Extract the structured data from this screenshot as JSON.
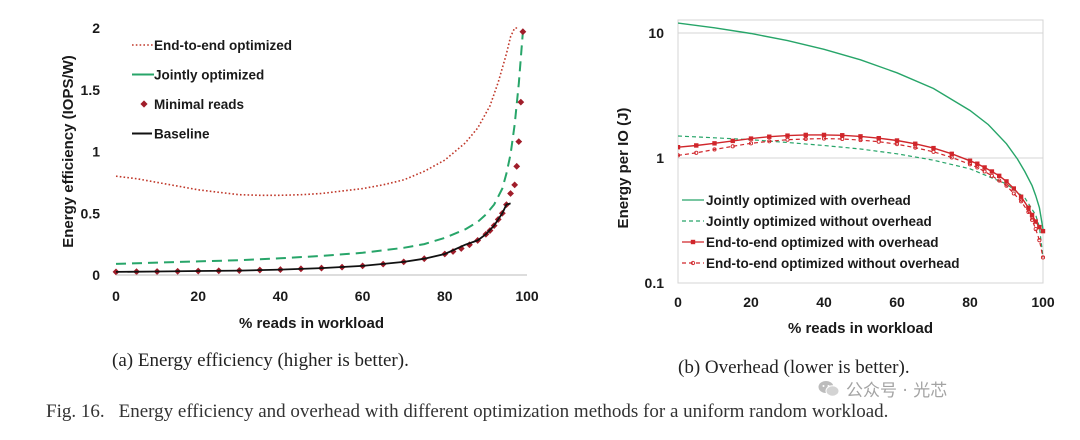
{
  "chart_data": [
    {
      "type": "line",
      "xlabel": "% reads in workload",
      "ylabel": "Energy  efficiency (IOPS/W)",
      "xlim": [
        0,
        100
      ],
      "ylim": [
        0,
        2
      ],
      "x_ticks": [
        "0",
        "20",
        "40",
        "60",
        "80",
        "100"
      ],
      "y_ticks": [
        "0",
        "0.5",
        "1",
        "1.5",
        "2"
      ],
      "grid": false,
      "legend": "top-left",
      "series": [
        {
          "name": "End-to-end optimized",
          "style": "dotted",
          "color": "#c0392b",
          "x": [
            0,
            5,
            10,
            15,
            20,
            25,
            30,
            35,
            40,
            45,
            50,
            55,
            60,
            65,
            70,
            75,
            80,
            85,
            88,
            91,
            93,
            95,
            96,
            97,
            98
          ],
          "y": [
            0.8,
            0.78,
            0.75,
            0.72,
            0.69,
            0.67,
            0.65,
            0.645,
            0.645,
            0.65,
            0.66,
            0.68,
            0.7,
            0.73,
            0.77,
            0.84,
            0.93,
            1.07,
            1.19,
            1.37,
            1.56,
            1.79,
            1.93,
            2.0,
            2.0
          ]
        },
        {
          "name": "Jointly optimized",
          "style": "dashed",
          "color": "#27a569",
          "x": [
            0,
            10,
            20,
            30,
            40,
            50,
            60,
            70,
            75,
            80,
            85,
            88,
            90,
            92,
            94,
            95,
            96,
            97,
            98,
            99
          ],
          "y": [
            0.09,
            0.1,
            0.11,
            0.12,
            0.135,
            0.155,
            0.18,
            0.22,
            0.25,
            0.3,
            0.37,
            0.43,
            0.49,
            0.57,
            0.7,
            0.82,
            0.98,
            1.22,
            1.55,
            1.97
          ]
        },
        {
          "name": "Minimal reads",
          "style": "markers",
          "color": "#a01d2a",
          "x": [
            0,
            5,
            10,
            15,
            20,
            25,
            30,
            35,
            40,
            45,
            50,
            55,
            60,
            65,
            70,
            75,
            80,
            82,
            84,
            86,
            88,
            90,
            91,
            92,
            93,
            94,
            95,
            96,
            97,
            97.5,
            98,
            98.5,
            99
          ],
          "y": [
            0.025,
            0.027,
            0.028,
            0.03,
            0.032,
            0.034,
            0.036,
            0.04,
            0.044,
            0.05,
            0.056,
            0.064,
            0.074,
            0.088,
            0.106,
            0.132,
            0.17,
            0.19,
            0.215,
            0.245,
            0.28,
            0.33,
            0.36,
            0.4,
            0.45,
            0.5,
            0.57,
            0.66,
            0.73,
            0.88,
            1.08,
            1.4,
            1.97
          ]
        },
        {
          "name": "Baseline",
          "style": "solid",
          "color": "#111111",
          "x": [
            0,
            10,
            20,
            30,
            40,
            50,
            60,
            70,
            75,
            80,
            85,
            88,
            90,
            92,
            94,
            95,
            96
          ],
          "y": [
            0.025,
            0.028,
            0.032,
            0.036,
            0.044,
            0.056,
            0.074,
            0.106,
            0.132,
            0.17,
            0.245,
            0.28,
            0.33,
            0.4,
            0.5,
            0.57,
            0.58
          ]
        }
      ]
    },
    {
      "type": "line",
      "xlabel": "% reads in workload",
      "ylabel": "Energy per IO (J)",
      "xlim": [
        0,
        100
      ],
      "ylim": [
        0.1,
        10
      ],
      "yscale": "log",
      "x_ticks": [
        "0",
        "20",
        "40",
        "60",
        "80",
        "100"
      ],
      "y_ticks": [
        "0.1",
        "1",
        "10"
      ],
      "grid": true,
      "legend": "bottom-left",
      "series": [
        {
          "name": "Jointly optimized with overhead",
          "style": "solid",
          "color": "#27a569",
          "x": [
            0,
            10,
            20,
            30,
            40,
            50,
            60,
            70,
            80,
            85,
            90,
            93,
            95,
            97,
            98,
            99,
            100
          ],
          "y": [
            12.0,
            11.0,
            9.9,
            8.7,
            7.4,
            6.1,
            4.8,
            3.6,
            2.4,
            1.85,
            1.3,
            0.98,
            0.78,
            0.6,
            0.5,
            0.4,
            0.27
          ]
        },
        {
          "name": "Jointly optimized without overhead",
          "style": "dashed",
          "color": "#27a569",
          "x": [
            0,
            10,
            20,
            30,
            40,
            50,
            60,
            70,
            80,
            90,
            95,
            98,
            99,
            100
          ],
          "y": [
            1.5,
            1.45,
            1.4,
            1.33,
            1.26,
            1.18,
            1.08,
            0.96,
            0.82,
            0.62,
            0.48,
            0.35,
            0.28,
            0.16
          ]
        },
        {
          "name": "End-to-end optimized with overhead",
          "style": "solid-markers",
          "color": "#d0262b",
          "x": [
            0,
            5,
            10,
            15,
            20,
            25,
            30,
            35,
            40,
            45,
            50,
            55,
            60,
            65,
            70,
            75,
            80,
            82,
            84,
            86,
            88,
            90,
            92,
            94,
            96,
            97,
            98,
            99,
            100
          ],
          "y": [
            1.22,
            1.26,
            1.31,
            1.37,
            1.43,
            1.48,
            1.51,
            1.53,
            1.53,
            1.52,
            1.49,
            1.44,
            1.38,
            1.3,
            1.2,
            1.08,
            0.95,
            0.9,
            0.84,
            0.78,
            0.72,
            0.65,
            0.57,
            0.49,
            0.4,
            0.35,
            0.31,
            0.28,
            0.26
          ]
        },
        {
          "name": "End-to-end optimized without overhead",
          "style": "dashed-markers",
          "color": "#d0262b",
          "x": [
            0,
            5,
            10,
            15,
            20,
            25,
            30,
            35,
            40,
            45,
            50,
            55,
            60,
            65,
            70,
            75,
            80,
            82,
            84,
            86,
            88,
            90,
            92,
            94,
            96,
            97,
            98,
            99,
            100
          ],
          "y": [
            1.05,
            1.1,
            1.17,
            1.24,
            1.31,
            1.36,
            1.4,
            1.42,
            1.43,
            1.42,
            1.39,
            1.35,
            1.29,
            1.21,
            1.12,
            1.01,
            0.89,
            0.84,
            0.78,
            0.72,
            0.66,
            0.6,
            0.52,
            0.45,
            0.37,
            0.32,
            0.27,
            0.22,
            0.16
          ]
        }
      ]
    }
  ],
  "captions": {
    "a": "(a) Energy efficiency (higher is better).",
    "b": "(b) Overhead (lower is better).",
    "figure_label": "Fig. 16.",
    "figure_text": "Energy efficiency and overhead with different optimization methods for a uniform random workload."
  },
  "watermark": "公众号 · 光芯"
}
